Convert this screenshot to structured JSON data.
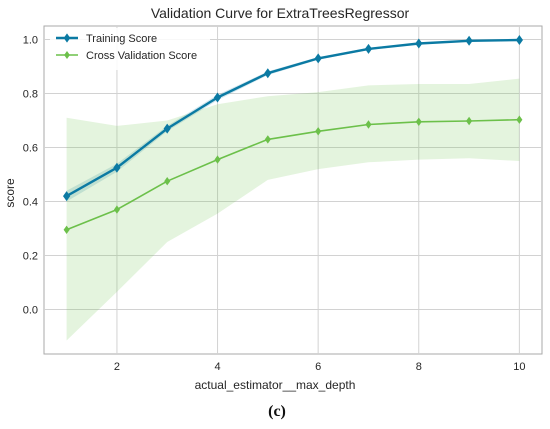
{
  "chart_data": {
    "type": "line",
    "title": "Validation Curve for ExtraTreesRegressor",
    "xlabel": "actual_estimator__max_depth",
    "ylabel": "score",
    "x": [
      1,
      2,
      3,
      4,
      5,
      6,
      7,
      8,
      9,
      10
    ],
    "xlim": [
      0.55,
      10.45
    ],
    "ylim": [
      -0.165,
      1.05
    ],
    "xticks": [
      2,
      4,
      6,
      8,
      10
    ],
    "yticks": [
      0.0,
      0.2,
      0.4,
      0.6,
      0.8,
      1.0
    ],
    "xtick_labels": [
      "2",
      "4",
      "6",
      "8",
      "10"
    ],
    "ytick_labels": [
      "0.0",
      "0.2",
      "0.4",
      "0.6",
      "0.8",
      "1.0"
    ],
    "grid": true,
    "legend_position": "top-left",
    "series": [
      {
        "name": "Training Score",
        "color": "#0b7aa3",
        "marker": "diamond",
        "values": [
          0.42,
          0.525,
          0.67,
          0.785,
          0.875,
          0.93,
          0.965,
          0.985,
          0.995,
          0.998
        ],
        "band_lower": [
          0.4,
          0.51,
          0.66,
          0.775,
          0.868,
          0.925,
          0.961,
          0.982,
          0.993,
          0.996
        ],
        "band_upper": [
          0.44,
          0.54,
          0.68,
          0.795,
          0.882,
          0.935,
          0.969,
          0.988,
          0.997,
          1.0
        ],
        "band_color": "#0b7aa3"
      },
      {
        "name": "Cross Validation Score",
        "color": "#6cc04a",
        "marker": "diamond",
        "values": [
          0.295,
          0.37,
          0.475,
          0.555,
          0.63,
          0.66,
          0.685,
          0.695,
          0.698,
          0.703
        ],
        "band_lower": [
          -0.115,
          0.065,
          0.25,
          0.355,
          0.48,
          0.52,
          0.545,
          0.555,
          0.56,
          0.55
        ],
        "band_upper": [
          0.71,
          0.68,
          0.7,
          0.76,
          0.79,
          0.805,
          0.83,
          0.835,
          0.835,
          0.855
        ],
        "band_color": "#6cc04a"
      }
    ]
  },
  "figure": {
    "caption": "(c)"
  }
}
